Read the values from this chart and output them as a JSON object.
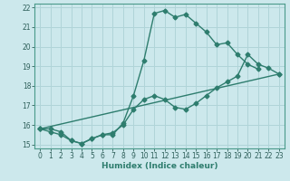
{
  "xlabel": "Humidex (Indice chaleur)",
  "background_color": "#cce8ec",
  "grid_color": "#b0d4d8",
  "line_color": "#2e7d6e",
  "xlim": [
    -0.5,
    23.5
  ],
  "ylim": [
    14.8,
    22.2
  ],
  "xticks": [
    0,
    1,
    2,
    3,
    4,
    5,
    6,
    7,
    8,
    9,
    10,
    11,
    12,
    13,
    14,
    15,
    16,
    17,
    18,
    19,
    20,
    21,
    22,
    23
  ],
  "yticks": [
    15,
    16,
    17,
    18,
    19,
    20,
    21,
    22
  ],
  "line1_x": [
    0,
    1,
    2,
    3,
    4,
    5,
    6,
    7,
    8,
    9,
    10,
    11,
    12,
    13,
    14,
    15,
    16,
    17,
    18,
    19,
    20,
    21
  ],
  "line1_y": [
    15.8,
    15.8,
    15.65,
    15.2,
    15.05,
    15.3,
    15.5,
    15.5,
    16.1,
    17.5,
    19.3,
    21.7,
    21.85,
    21.5,
    21.65,
    21.2,
    20.75,
    20.1,
    20.2,
    19.6,
    19.1,
    18.85
  ],
  "line2_x": [
    0,
    1,
    2,
    3,
    4,
    5,
    6,
    7,
    8,
    9,
    10,
    11,
    12,
    13,
    14,
    15,
    16,
    17,
    18,
    19,
    20,
    21,
    22,
    23
  ],
  "line2_y": [
    15.8,
    15.65,
    15.5,
    15.2,
    15.05,
    15.3,
    15.5,
    15.6,
    16.0,
    16.8,
    17.3,
    17.5,
    17.3,
    16.9,
    16.8,
    17.1,
    17.5,
    17.9,
    18.2,
    18.5,
    19.6,
    19.1,
    18.9,
    18.6
  ],
  "line3_x": [
    0,
    23
  ],
  "line3_y": [
    15.8,
    18.6
  ],
  "marker_size": 2.5,
  "line_width": 1.0
}
